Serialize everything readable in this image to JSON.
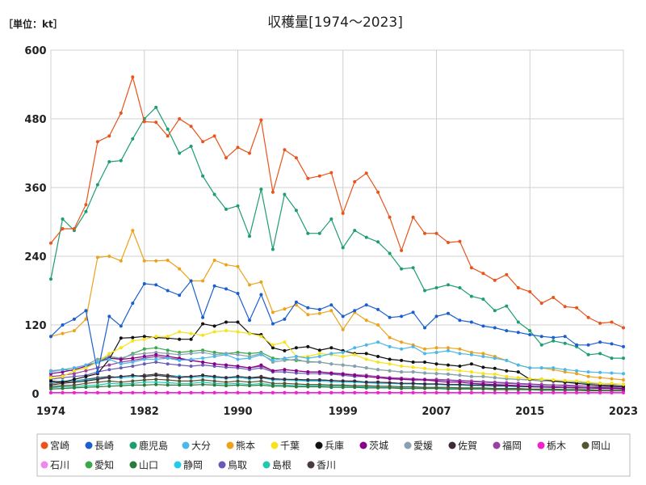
{
  "chart_data": {
    "type": "line",
    "title": "収穫量[1974～2023]",
    "unit_label": "［単位：kt］",
    "xlabel": "",
    "ylabel": "",
    "ylim": [
      0,
      600
    ],
    "yticks": [
      0,
      120,
      240,
      360,
      480,
      600
    ],
    "xticks": [
      1974,
      1982,
      1990,
      1999,
      2007,
      2015,
      2023
    ],
    "grid": true,
    "legend_position": "bottom",
    "x": [
      1974,
      1975,
      1976,
      1977,
      1978,
      1979,
      1980,
      1981,
      1982,
      1983,
      1984,
      1985,
      1986,
      1987,
      1988,
      1989,
      1990,
      1991,
      1992,
      1993,
      1994,
      1995,
      1996,
      1997,
      1998,
      1999,
      2000,
      2001,
      2002,
      2003,
      2004,
      2005,
      2006,
      2007,
      2008,
      2009,
      2010,
      2011,
      2012,
      2013,
      2014,
      2015,
      2016,
      2017,
      2018,
      2019,
      2020,
      2021,
      2022,
      2023
    ],
    "series": [
      {
        "name": "宮崎",
        "color": "#e8541c",
        "values": [
          263,
          288,
          288,
          330,
          440,
          450,
          490,
          553,
          475,
          474,
          450,
          480,
          467,
          440,
          450,
          412,
          430,
          420,
          478,
          352,
          426,
          412,
          376,
          380,
          386,
          315,
          370,
          385,
          352,
          308,
          250,
          308,
          280,
          280,
          264,
          266,
          220,
          210,
          198,
          208,
          185,
          178,
          158,
          168,
          152,
          150,
          133,
          123,
          125,
          115
        ]
      },
      {
        "name": "長崎",
        "color": "#1a5fcf",
        "values": [
          100,
          120,
          130,
          145,
          37,
          135,
          118,
          158,
          192,
          190,
          180,
          172,
          197,
          133,
          188,
          183,
          175,
          128,
          173,
          122,
          130,
          160,
          150,
          147,
          155,
          135,
          145,
          155,
          147,
          133,
          135,
          142,
          115,
          135,
          140,
          128,
          125,
          118,
          115,
          110,
          107,
          103,
          100,
          98,
          100,
          85,
          85,
          90,
          87,
          82
        ]
      },
      {
        "name": "鹿児島",
        "color": "#1e9e6e",
        "values": [
          200,
          305,
          285,
          318,
          365,
          405,
          407,
          445,
          480,
          500,
          462,
          420,
          432,
          380,
          348,
          322,
          328,
          275,
          357,
          252,
          348,
          320,
          280,
          280,
          305,
          255,
          285,
          273,
          265,
          245,
          218,
          220,
          180,
          185,
          190,
          185,
          170,
          165,
          145,
          153,
          125,
          110,
          85,
          92,
          88,
          82,
          68,
          70,
          62,
          62
        ]
      },
      {
        "name": "大分",
        "color": "#4ab8e8",
        "values": [
          38,
          42,
          45,
          50,
          55,
          60,
          52,
          55,
          60,
          60,
          62,
          58,
          60,
          62,
          65,
          68,
          60,
          62,
          68,
          58,
          62,
          65,
          62,
          65,
          70,
          72,
          80,
          85,
          90,
          82,
          78,
          82,
          70,
          72,
          75,
          70,
          68,
          65,
          62,
          58,
          50,
          45,
          45,
          45,
          42,
          40,
          38,
          37,
          36,
          35
        ]
      },
      {
        "name": "熊本",
        "color": "#eca21a",
        "values": [
          100,
          105,
          110,
          130,
          238,
          240,
          232,
          285,
          232,
          232,
          233,
          218,
          197,
          197,
          233,
          225,
          222,
          190,
          195,
          142,
          148,
          155,
          138,
          140,
          145,
          112,
          142,
          128,
          120,
          98,
          90,
          85,
          78,
          80,
          80,
          78,
          72,
          70,
          65,
          58,
          50,
          45,
          45,
          42,
          38,
          35,
          30,
          28,
          26,
          24
        ]
      },
      {
        "name": "千葉",
        "color": "#f8e21a",
        "values": [
          28,
          30,
          40,
          45,
          55,
          70,
          80,
          92,
          95,
          100,
          100,
          108,
          105,
          102,
          108,
          110,
          108,
          105,
          100,
          85,
          90,
          65,
          65,
          70,
          68,
          65,
          68,
          60,
          55,
          52,
          48,
          46,
          44,
          42,
          42,
          40,
          38,
          35,
          34,
          30,
          28,
          26,
          25,
          24,
          23,
          22,
          20,
          18,
          18,
          16
        ]
      },
      {
        "name": "兵庫",
        "color": "#111111",
        "values": [
          22,
          20,
          25,
          30,
          35,
          60,
          97,
          98,
          100,
          98,
          97,
          95,
          95,
          122,
          118,
          125,
          125,
          105,
          103,
          80,
          75,
          80,
          82,
          76,
          80,
          75,
          70,
          70,
          65,
          60,
          58,
          55,
          55,
          52,
          50,
          48,
          52,
          46,
          44,
          40,
          38,
          25,
          25,
          22,
          20,
          18,
          16,
          15,
          14,
          13
        ]
      },
      {
        "name": "茨城",
        "color": "#880088",
        "values": [
          35,
          38,
          42,
          48,
          55,
          62,
          60,
          62,
          65,
          68,
          65,
          62,
          58,
          55,
          52,
          50,
          48,
          45,
          50,
          40,
          42,
          40,
          38,
          38,
          36,
          34,
          32,
          30,
          28,
          26,
          25,
          24,
          24,
          22,
          20,
          20,
          18,
          17,
          16,
          15,
          14,
          13,
          12,
          12,
          11,
          10,
          10,
          9,
          9,
          8
        ]
      },
      {
        "name": "愛媛",
        "color": "#8aa0b0",
        "values": [
          40,
          42,
          45,
          50,
          60,
          65,
          62,
          68,
          70,
          72,
          70,
          68,
          70,
          72,
          68,
          70,
          68,
          65,
          70,
          55,
          58,
          60,
          55,
          55,
          52,
          50,
          48,
          45,
          42,
          40,
          38,
          38,
          36,
          35,
          34,
          32,
          30,
          30,
          28,
          26,
          25,
          24,
          22,
          22,
          20,
          20,
          19,
          18,
          17,
          16
        ]
      },
      {
        "name": "佐賀",
        "color": "#3a2a3a",
        "values": [
          15,
          18,
          20,
          22,
          25,
          28,
          30,
          32,
          30,
          32,
          30,
          28,
          30,
          32,
          30,
          28,
          30,
          28,
          28,
          26,
          25,
          25,
          24,
          24,
          23,
          22,
          22,
          20,
          20,
          19,
          18,
          18,
          17,
          17,
          16,
          16,
          15,
          15,
          14,
          14,
          13,
          12,
          12,
          11,
          11,
          10,
          10,
          10,
          9,
          9
        ]
      },
      {
        "name": "福岡",
        "color": "#9a40a0",
        "values": [
          30,
          32,
          35,
          40,
          45,
          50,
          55,
          58,
          62,
          65,
          62,
          60,
          58,
          55,
          52,
          50,
          48,
          45,
          48,
          40,
          42,
          40,
          38,
          38,
          36,
          35,
          33,
          32,
          30,
          28,
          27,
          26,
          25,
          25,
          24,
          23,
          22,
          21,
          20,
          19,
          18,
          17,
          16,
          15,
          15,
          14,
          13,
          13,
          12,
          12
        ]
      },
      {
        "name": "栃木",
        "color": "#ee22cc",
        "values": [
          2,
          2,
          2,
          2,
          2,
          2,
          2,
          2,
          2,
          2,
          2,
          2,
          2,
          2,
          2,
          2,
          2,
          2,
          2,
          2,
          2,
          2,
          2,
          2,
          2,
          2,
          2,
          2,
          2,
          2,
          2,
          2,
          2,
          2,
          2,
          2,
          2,
          2,
          2,
          2,
          2,
          2,
          2,
          2,
          2,
          2,
          2,
          2,
          2,
          2
        ]
      },
      {
        "name": "岡山",
        "color": "#555533",
        "values": [
          12,
          14,
          15,
          18,
          20,
          22,
          20,
          22,
          24,
          25,
          24,
          22,
          22,
          24,
          22,
          20,
          22,
          20,
          22,
          18,
          18,
          17,
          16,
          16,
          15,
          15,
          14,
          14,
          13,
          13,
          12,
          12,
          11,
          11,
          11,
          10,
          10,
          10,
          9,
          9,
          9,
          8,
          8,
          8,
          7,
          7,
          7,
          6,
          6,
          6
        ]
      },
      {
        "name": "石川",
        "color": "#ee88ee",
        "values": [
          1,
          1,
          1,
          1,
          1,
          1,
          1,
          1,
          1,
          1,
          1,
          1,
          1,
          1,
          1,
          1,
          1,
          1,
          1,
          1,
          1,
          1,
          1,
          1,
          1,
          1,
          1,
          1,
          1,
          1,
          1,
          1,
          1,
          1,
          1,
          1,
          1,
          1,
          1,
          1,
          1,
          1,
          1,
          1,
          1,
          1,
          1,
          1,
          1,
          1
        ]
      },
      {
        "name": "愛知",
        "color": "#3aa84a",
        "values": [
          40,
          42,
          40,
          45,
          55,
          65,
          60,
          70,
          78,
          80,
          76,
          72,
          74,
          76,
          72,
          70,
          72,
          70,
          72,
          62,
          60,
          58,
          56,
          55,
          52,
          50,
          48,
          45,
          42,
          40,
          38,
          38,
          36,
          35,
          34,
          32,
          30,
          30,
          28,
          26,
          25,
          24,
          22,
          22,
          20,
          20,
          18,
          18,
          17,
          16
        ]
      },
      {
        "name": "山口",
        "color": "#2a7a3a",
        "values": [
          8,
          9,
          10,
          11,
          12,
          13,
          14,
          15,
          15,
          16,
          15,
          15,
          15,
          16,
          15,
          14,
          15,
          14,
          15,
          13,
          13,
          12,
          12,
          12,
          11,
          11,
          11,
          10,
          10,
          10,
          9,
          9,
          9,
          9,
          8,
          8,
          8,
          8,
          7,
          7,
          7,
          7,
          6,
          6,
          6,
          6,
          5,
          5,
          5,
          5
        ]
      },
      {
        "name": "静岡",
        "color": "#22cce8",
        "values": [
          20,
          22,
          22,
          24,
          26,
          28,
          28,
          30,
          30,
          32,
          30,
          30,
          28,
          30,
          28,
          27,
          28,
          26,
          28,
          24,
          24,
          23,
          22,
          22,
          21,
          20,
          20,
          19,
          18,
          18,
          17,
          17,
          16,
          16,
          15,
          15,
          14,
          14,
          13,
          13,
          12,
          12,
          11,
          11,
          10,
          10,
          10,
          9,
          9,
          9
        ]
      },
      {
        "name": "鳥取",
        "color": "#6a5ab8",
        "values": [
          25,
          28,
          30,
          32,
          38,
          42,
          45,
          48,
          52,
          55,
          52,
          50,
          48,
          50,
          48,
          46,
          45,
          42,
          45,
          38,
          38,
          36,
          35,
          35,
          34,
          32,
          30,
          30,
          28,
          27,
          26,
          25,
          24,
          24,
          23,
          22,
          21,
          20,
          19,
          18,
          17,
          16,
          15,
          15,
          14,
          13,
          13,
          12,
          12,
          11
        ]
      },
      {
        "name": "島根",
        "color": "#22c8b0",
        "values": [
          10,
          12,
          12,
          14,
          15,
          18,
          17,
          18,
          20,
          20,
          19,
          18,
          18,
          20,
          18,
          17,
          18,
          16,
          18,
          15,
          15,
          14,
          14,
          14,
          13,
          13,
          12,
          12,
          11,
          11,
          10,
          10,
          10,
          10,
          9,
          9,
          9,
          8,
          8,
          8,
          7,
          7,
          7,
          7,
          6,
          6,
          6,
          6,
          5,
          5
        ]
      },
      {
        "name": "香川",
        "color": "#4a3a3a",
        "values": [
          18,
          20,
          22,
          25,
          28,
          30,
          28,
          30,
          32,
          34,
          32,
          30,
          30,
          32,
          30,
          28,
          30,
          28,
          30,
          26,
          25,
          24,
          24,
          24,
          23,
          22,
          21,
          20,
          20,
          19,
          18,
          18,
          17,
          17,
          16,
          16,
          15,
          15,
          14,
          14,
          13,
          13,
          12,
          12,
          11,
          11,
          10,
          10,
          10,
          9
        ]
      }
    ]
  }
}
